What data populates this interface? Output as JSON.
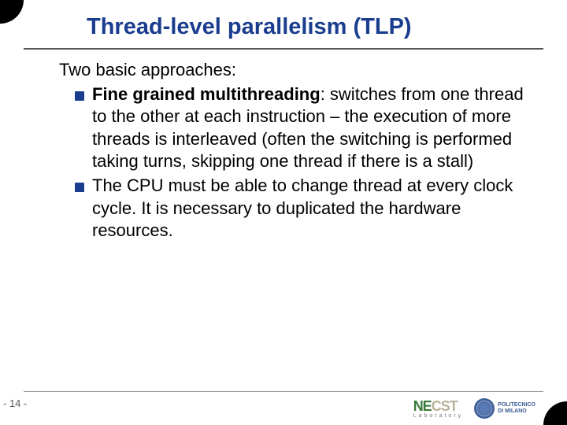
{
  "title": "Thread-level parallelism (TLP)",
  "intro": "Two basic approaches:",
  "bullets": [
    {
      "bold": "Fine grained multithreading",
      "rest": ": switches from one thread to the other at each instruction – the execution of more threads is interleaved (often the switching is performed taking turns, skipping one thread if there is a stall)"
    },
    {
      "bold": "",
      "rest": "The CPU must be able to change thread at every clock cycle. It is necessary to duplicated the hardware resources."
    }
  ],
  "page_number": "- 14 -",
  "logo_necst_main": "NE",
  "logo_necst_sub": "CST",
  "logo_necst_lab": "Laboratory",
  "logo_poli_line1": "POLITECNICO",
  "logo_poli_line2": "DI MILANO",
  "colors": {
    "title": "#1a3d8f",
    "bullet": "#1a3d8f",
    "hr": "#555555"
  }
}
